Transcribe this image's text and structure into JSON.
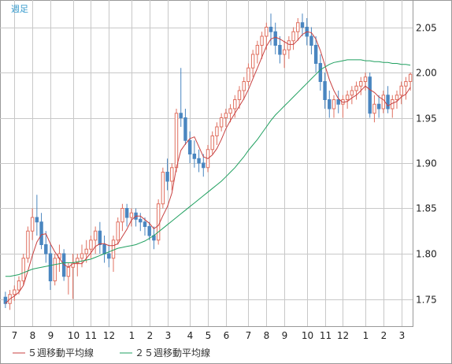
{
  "chart_data": {
    "type": "candlestick",
    "title": "週足",
    "ylim": [
      1.72,
      2.08
    ],
    "y_ticks": [
      1.75,
      1.8,
      1.85,
      1.9,
      1.95,
      2.0,
      2.05
    ],
    "y_tick_labels": [
      "1.75",
      "1.80",
      "1.85",
      "1.90",
      "1.95",
      "2.00",
      "2.05"
    ],
    "x_tick_labels": [
      "7",
      "8",
      "9",
      "10",
      "11",
      "12",
      "1",
      "2",
      "3",
      "4",
      "5",
      "6",
      "7",
      "8",
      "9",
      "10",
      "11",
      "12",
      "1",
      "2",
      "3"
    ],
    "x_tick_week_index": [
      2,
      6,
      10,
      15,
      19,
      23,
      28,
      32,
      36,
      41,
      45,
      49,
      54,
      58,
      62,
      67,
      71,
      75,
      80,
      84,
      88
    ],
    "total_weeks": 91,
    "grid": true,
    "legend_position": "bottom",
    "colors": {
      "up_candle": "#e07060",
      "down_candle": "#4a86c0",
      "ma5": "#c84040",
      "ma25": "#20a060",
      "grid": "#c8c8c8",
      "title": "#3399cc"
    },
    "series": [
      {
        "name": "５週移動平均線",
        "color": "#c84040"
      },
      {
        "name": "２５週移動平均線",
        "color": "#20a060"
      }
    ],
    "candles": [
      [
        1.752,
        1.758,
        1.74,
        1.745
      ],
      [
        1.745,
        1.76,
        1.738,
        1.755
      ],
      [
        1.755,
        1.765,
        1.748,
        1.76
      ],
      [
        1.76,
        1.775,
        1.755,
        1.77
      ],
      [
        1.77,
        1.8,
        1.765,
        1.795
      ],
      [
        1.795,
        1.83,
        1.79,
        1.825
      ],
      [
        1.825,
        1.85,
        1.815,
        1.84
      ],
      [
        1.84,
        1.865,
        1.82,
        1.835
      ],
      [
        1.835,
        1.845,
        1.805,
        1.81
      ],
      [
        1.81,
        1.825,
        1.79,
        1.8
      ],
      [
        1.8,
        1.81,
        1.76,
        1.77
      ],
      [
        1.77,
        1.8,
        1.765,
        1.795
      ],
      [
        1.795,
        1.81,
        1.78,
        1.8
      ],
      [
        1.8,
        1.805,
        1.77,
        1.775
      ],
      [
        1.775,
        1.79,
        1.755,
        1.785
      ],
      [
        1.785,
        1.8,
        1.75,
        1.79
      ],
      [
        1.79,
        1.8,
        1.775,
        1.795
      ],
      [
        1.795,
        1.81,
        1.785,
        1.8
      ],
      [
        1.8,
        1.815,
        1.79,
        1.805
      ],
      [
        1.805,
        1.82,
        1.795,
        1.815
      ],
      [
        1.815,
        1.83,
        1.8,
        1.825
      ],
      [
        1.825,
        1.835,
        1.8,
        1.81
      ],
      [
        1.81,
        1.82,
        1.79,
        1.8
      ],
      [
        1.8,
        1.81,
        1.785,
        1.795
      ],
      [
        1.795,
        1.82,
        1.78,
        1.815
      ],
      [
        1.815,
        1.84,
        1.81,
        1.835
      ],
      [
        1.835,
        1.855,
        1.825,
        1.85
      ],
      [
        1.85,
        1.855,
        1.83,
        1.84
      ],
      [
        1.84,
        1.85,
        1.83,
        1.845
      ],
      [
        1.845,
        1.85,
        1.83,
        1.838
      ],
      [
        1.838,
        1.845,
        1.825,
        1.835
      ],
      [
        1.835,
        1.84,
        1.82,
        1.83
      ],
      [
        1.83,
        1.835,
        1.815,
        1.82
      ],
      [
        1.82,
        1.83,
        1.805,
        1.815
      ],
      [
        1.815,
        1.86,
        1.81,
        1.855
      ],
      [
        1.855,
        1.895,
        1.85,
        1.89
      ],
      [
        1.89,
        1.905,
        1.87,
        1.88
      ],
      [
        1.88,
        1.9,
        1.87,
        1.895
      ],
      [
        1.895,
        1.96,
        1.89,
        1.955
      ],
      [
        1.955,
        2.005,
        1.94,
        1.95
      ],
      [
        1.95,
        1.96,
        1.92,
        1.925
      ],
      [
        1.925,
        1.935,
        1.9,
        1.91
      ],
      [
        1.91,
        1.925,
        1.895,
        1.905
      ],
      [
        1.905,
        1.915,
        1.89,
        1.9
      ],
      [
        1.9,
        1.91,
        1.885,
        1.895
      ],
      [
        1.895,
        1.92,
        1.89,
        1.915
      ],
      [
        1.915,
        1.935,
        1.91,
        1.93
      ],
      [
        1.93,
        1.945,
        1.92,
        1.94
      ],
      [
        1.94,
        1.955,
        1.935,
        1.95
      ],
      [
        1.95,
        1.96,
        1.94,
        1.955
      ],
      [
        1.955,
        1.965,
        1.945,
        1.96
      ],
      [
        1.96,
        1.975,
        1.95,
        1.97
      ],
      [
        1.97,
        1.985,
        1.96,
        1.98
      ],
      [
        1.98,
        1.995,
        1.97,
        1.99
      ],
      [
        1.99,
        2.01,
        1.985,
        2.005
      ],
      [
        2.005,
        2.025,
        1.995,
        2.02
      ],
      [
        2.02,
        2.035,
        2.01,
        2.03
      ],
      [
        2.03,
        2.045,
        2.015,
        2.04
      ],
      [
        2.04,
        2.055,
        2.025,
        2.05
      ],
      [
        2.05,
        2.065,
        2.03,
        2.045
      ],
      [
        2.045,
        2.055,
        2.02,
        2.03
      ],
      [
        2.03,
        2.04,
        2.01,
        2.02
      ],
      [
        2.02,
        2.035,
        2.005,
        2.025
      ],
      [
        2.025,
        2.04,
        2.015,
        2.035
      ],
      [
        2.035,
        2.05,
        2.025,
        2.045
      ],
      [
        2.045,
        2.06,
        2.035,
        2.055
      ],
      [
        2.055,
        2.065,
        2.04,
        2.05
      ],
      [
        2.05,
        2.06,
        2.03,
        2.04
      ],
      [
        2.04,
        2.05,
        2.02,
        2.03
      ],
      [
        2.03,
        2.04,
        2.0,
        2.01
      ],
      [
        2.01,
        2.02,
        1.98,
        1.99
      ],
      [
        1.99,
        2.0,
        1.96,
        1.97
      ],
      [
        1.97,
        1.98,
        1.95,
        1.96
      ],
      [
        1.96,
        1.975,
        1.95,
        1.97
      ],
      [
        1.97,
        1.98,
        1.955,
        1.965
      ],
      [
        1.965,
        1.975,
        1.95,
        1.97
      ],
      [
        1.97,
        1.98,
        1.96,
        1.975
      ],
      [
        1.975,
        1.985,
        1.965,
        1.98
      ],
      [
        1.98,
        1.99,
        1.97,
        1.985
      ],
      [
        1.985,
        1.995,
        1.975,
        1.99
      ],
      [
        1.99,
        2.0,
        1.98,
        1.995
      ],
      [
        1.995,
        2.0,
        1.95,
        1.955
      ],
      [
        1.955,
        1.975,
        1.945,
        1.965
      ],
      [
        1.965,
        1.975,
        1.95,
        1.96
      ],
      [
        1.96,
        1.98,
        1.955,
        1.975
      ],
      [
        1.975,
        1.985,
        1.955,
        1.96
      ],
      [
        1.96,
        1.975,
        1.95,
        1.97
      ],
      [
        1.97,
        1.98,
        1.96,
        1.975
      ],
      [
        1.975,
        1.99,
        1.965,
        1.985
      ],
      [
        1.985,
        1.995,
        1.97,
        1.99
      ],
      [
        1.99,
        2.0,
        1.98,
        1.998
      ]
    ],
    "ma25": [
      1.775,
      1.775,
      1.776,
      1.777,
      1.779,
      1.781,
      1.783,
      1.784,
      1.785,
      1.786,
      1.787,
      1.788,
      1.789,
      1.79,
      1.79,
      1.79,
      1.791,
      1.792,
      1.793,
      1.794,
      1.796,
      1.798,
      1.8,
      1.802,
      1.804,
      1.806,
      1.807,
      1.808,
      1.809,
      1.81,
      1.812,
      1.814,
      1.817,
      1.82,
      1.824,
      1.828,
      1.832,
      1.836,
      1.84,
      1.844,
      1.848,
      1.852,
      1.856,
      1.86,
      1.864,
      1.868,
      1.872,
      1.876,
      1.88,
      1.885,
      1.89,
      1.895,
      1.901,
      1.907,
      1.914,
      1.92,
      1.926,
      1.933,
      1.94,
      1.947,
      1.953,
      1.958,
      1.963,
      1.968,
      1.973,
      1.978,
      1.983,
      1.988,
      1.993,
      1.998,
      2.003,
      2.006,
      2.009,
      2.011,
      2.012,
      2.013,
      2.014,
      2.014,
      2.014,
      2.014,
      2.013,
      2.013,
      2.012,
      2.012,
      2.011,
      2.011,
      2.01,
      2.01,
      2.009,
      2.009,
      2.008
    ]
  }
}
